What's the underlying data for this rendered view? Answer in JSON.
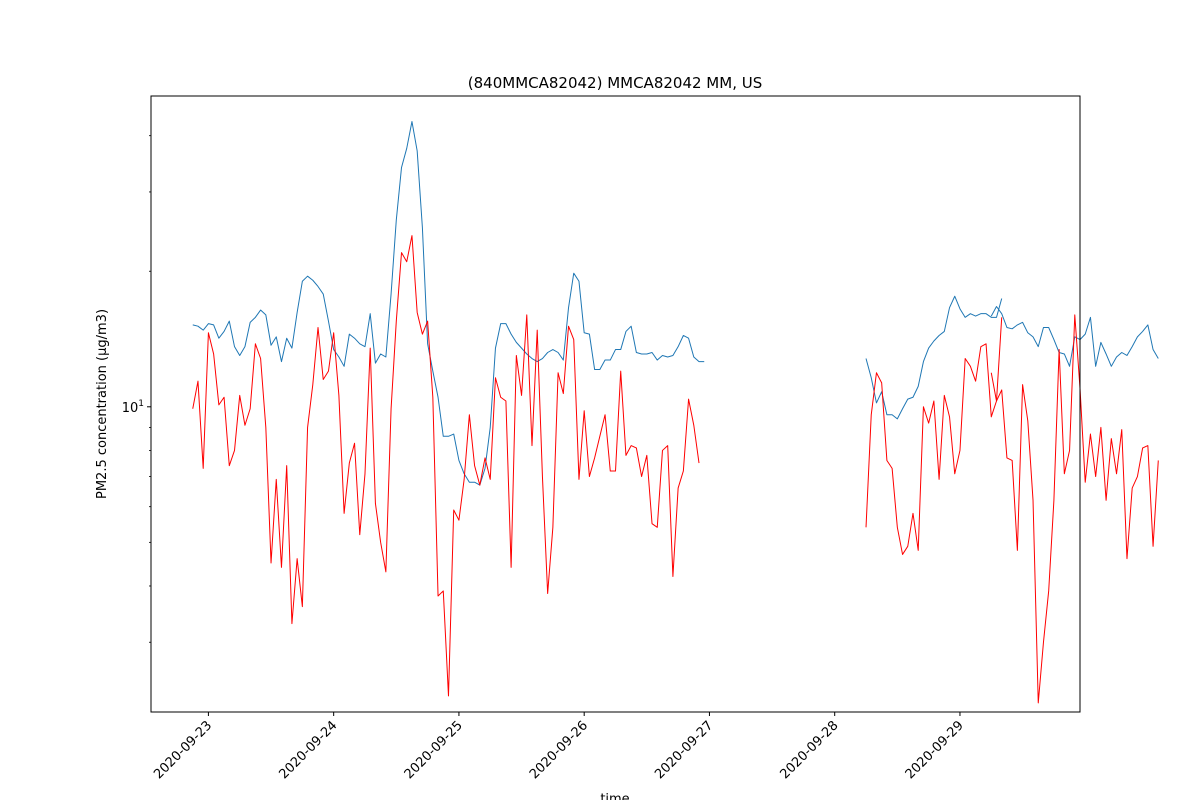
{
  "chart_data": {
    "type": "line",
    "title": "(840MMCA82042) MMCA82042 MM, US",
    "xlabel": "time",
    "ylabel": "PM2.5 concentration (µg/m3)",
    "yscale": "log",
    "ylim": [
      2.1,
      49
    ],
    "xlim": [
      "2020-09-22 13:00",
      "2020-09-29 23:00"
    ],
    "grid": false,
    "x_ticks": [
      "2020-09-23",
      "2020-09-24",
      "2020-09-25",
      "2020-09-26",
      "2020-09-27",
      "2020-09-28",
      "2020-09-29"
    ],
    "y_ticks": [
      {
        "label_base": "10",
        "label_exp": "1",
        "value": 10
      }
    ],
    "series": [
      {
        "color": "#1f77b4",
        "segments": [
          {
            "start": "2020-09-22 21:00",
            "values": [
              15.2,
              15.1,
              14.8,
              15.3,
              15.2,
              14.2,
              14.7,
              15.5,
              13.6,
              13.0,
              13.6,
              15.4,
              15.8,
              16.4,
              16.0,
              13.7,
              14.3,
              12.6,
              14.2,
              13.5,
              16.2,
              19.0,
              19.5,
              19.1,
              18.5,
              17.8,
              15.5,
              13.4,
              12.9,
              12.3,
              14.5,
              14.2,
              13.8,
              13.6,
              16.1,
              12.5,
              13.1,
              12.9,
              17.8,
              26.0,
              34.0,
              37.5,
              43.0,
              37.0,
              25.0,
              13.8,
              12.0,
              10.5,
              8.6,
              8.6,
              8.7,
              7.6,
              7.1,
              6.8,
              6.8,
              6.7,
              7.3,
              9.0,
              13.5,
              15.3,
              15.3,
              14.5,
              13.9,
              13.5,
              13.1,
              12.8,
              12.6,
              12.8,
              13.2,
              13.4,
              13.2,
              12.7,
              16.6,
              19.8,
              19.0,
              14.6,
              14.5,
              12.1,
              12.1,
              12.7,
              12.7,
              13.4,
              13.4,
              14.7,
              15.1,
              13.2,
              13.1,
              13.1,
              13.2,
              12.7,
              13.0,
              12.9,
              13.0,
              13.6,
              14.4,
              14.2,
              12.9,
              12.6,
              12.6
            ]
          },
          {
            "start": "2020-09-28 06:00",
            "values": [
              12.8,
              11.6,
              10.2,
              10.8,
              9.6,
              9.6,
              9.4,
              9.9,
              10.4,
              10.5,
              11.1,
              12.6,
              13.5,
              14.0,
              14.4,
              14.7,
              16.6,
              17.6,
              16.5,
              15.8,
              16.1,
              15.9,
              16.1,
              16.1,
              15.8,
              15.8,
              17.4
            ]
          },
          {
            "start": "2020-09-29 06:00",
            "values": [
              15.9,
              16.7,
              16.1,
              15.0,
              14.9,
              15.2,
              15.4,
              14.6,
              14.3,
              13.6,
              15.0,
              15.0,
              14.1,
              13.2,
              13.1,
              12.3,
              14.3,
              14.1,
              14.5,
              15.8,
              12.3,
              13.9,
              13.1,
              12.3,
              12.9,
              13.2,
              13.0,
              13.6,
              14.3,
              14.7,
              15.2,
              13.4,
              12.8
            ]
          }
        ]
      },
      {
        "color": "#ff0000",
        "segments": [
          {
            "start": "2020-09-22 21:00",
            "values": [
              9.9,
              11.4,
              7.3,
              14.6,
              13.1,
              10.1,
              10.5,
              7.4,
              8.0,
              10.6,
              9.1,
              9.9,
              13.8,
              12.8,
              9.0,
              4.5,
              6.9,
              4.4,
              7.4,
              3.3,
              4.6,
              3.6,
              9.0,
              11.2,
              15.0,
              11.5,
              12.0,
              14.6,
              10.6,
              5.8,
              7.5,
              8.3,
              5.2,
              7.1,
              13.5,
              6.1,
              5.0,
              4.3,
              9.9,
              15.5,
              22.0,
              21.0,
              24.0,
              16.2,
              14.5,
              15.5,
              10.5,
              3.8,
              3.9,
              2.28,
              5.9,
              5.6,
              6.9,
              9.6,
              7.4,
              6.7,
              7.7,
              6.9,
              11.6,
              10.5,
              10.3,
              4.4,
              13.0,
              10.6,
              16.0,
              8.2,
              14.8,
              7.0,
              3.85,
              5.4,
              11.9,
              10.7,
              15.1,
              14.1,
              6.9,
              9.8,
              7.0,
              7.7,
              8.6,
              9.6,
              7.2,
              7.2,
              12.0,
              7.8,
              8.2,
              8.1,
              7.0,
              7.8,
              5.5,
              5.4,
              8.0,
              8.2,
              4.2,
              6.6,
              7.2,
              10.4,
              9.1,
              7.5
            ]
          },
          {
            "start": "2020-09-28 06:00",
            "values": [
              5.4,
              9.6,
              11.9,
              11.3,
              7.6,
              7.3,
              5.4,
              4.7,
              4.9,
              5.8,
              4.8,
              10.0,
              9.2,
              10.3,
              6.9,
              10.6,
              9.5,
              7.1,
              8.0,
              12.8,
              12.3,
              11.4,
              13.6,
              13.8,
              9.5,
              10.3,
              15.8
            ]
          },
          {
            "start": "2020-09-29 06:00",
            "values": [
              11.9,
              10.3,
              10.9,
              7.7,
              7.6,
              4.8,
              11.2,
              9.3,
              6.2,
              2.2,
              3.0,
              3.9,
              6.2,
              13.4,
              7.1,
              8.0,
              16.0,
              11.0,
              6.8,
              8.7,
              7.0,
              9.0,
              6.2,
              8.5,
              7.1,
              8.9,
              4.6,
              6.6,
              7.0,
              8.1,
              8.2,
              4.9,
              7.6
            ]
          }
        ]
      }
    ]
  }
}
